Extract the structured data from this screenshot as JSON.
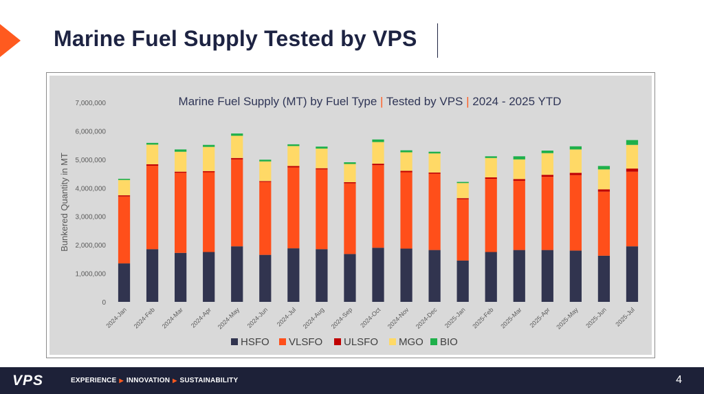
{
  "slide": {
    "title": "Marine Fuel Supply Tested by VPS",
    "page_number": "4"
  },
  "footer": {
    "logo": "VPS",
    "tagline": [
      "EXPERIENCE",
      "INNOVATION",
      "SUSTAINABILITY"
    ]
  },
  "colors": {
    "accent": "#ff5a1f",
    "navy": "#1d2138"
  },
  "chart_data": {
    "type": "bar",
    "stacked": true,
    "title_parts": [
      "Marine Fuel Supply (MT) by Fuel Type",
      "Tested by VPS",
      "2024 - 2025 YTD"
    ],
    "ylabel": "Bunkered Quantity in MT",
    "ylim": [
      0,
      7000000
    ],
    "yticks": [
      "0",
      "1,000,000",
      "2,000,000",
      "3,000,000",
      "4,000,000",
      "5,000,000",
      "6,000,000",
      "7,000,000"
    ],
    "categories": [
      "2024-Jan",
      "2024-Feb",
      "2024-Mar",
      "2024-Apr",
      "2024-May",
      "2024-Jun",
      "2024-Jul",
      "2024-Aug",
      "2024-Sep",
      "2024-Oct",
      "2024-Nov",
      "2024-Dec",
      "2025-Jan",
      "2025-Feb",
      "2025-Mar",
      "2025-Apr",
      "2025-May",
      "2025-Jun",
      "2025-Jul"
    ],
    "series": [
      {
        "name": "HSFO",
        "color": "#31344f",
        "values": [
          1350000,
          1850000,
          1720000,
          1750000,
          1950000,
          1650000,
          1880000,
          1850000,
          1680000,
          1900000,
          1870000,
          1820000,
          1450000,
          1750000,
          1820000,
          1820000,
          1800000,
          1620000,
          1950000
        ]
      },
      {
        "name": "VLSFO",
        "color": "#ff4f1a",
        "values": [
          2350000,
          2930000,
          2810000,
          2800000,
          3050000,
          2560000,
          2840000,
          2800000,
          2480000,
          2900000,
          2680000,
          2680000,
          2150000,
          2570000,
          2430000,
          2570000,
          2650000,
          2250000,
          2620000
        ]
      },
      {
        "name": "ULSFO",
        "color": "#c00000",
        "values": [
          40000,
          50000,
          40000,
          40000,
          50000,
          30000,
          50000,
          40000,
          40000,
          50000,
          50000,
          40000,
          40000,
          50000,
          60000,
          70000,
          80000,
          80000,
          110000
        ]
      },
      {
        "name": "MGO",
        "color": "#ffd966",
        "values": [
          540000,
          690000,
          700000,
          850000,
          780000,
          690000,
          700000,
          690000,
          640000,
          760000,
          650000,
          670000,
          530000,
          680000,
          690000,
          760000,
          820000,
          700000,
          830000
        ]
      },
      {
        "name": "BIO",
        "color": "#1fb04b",
        "values": [
          40000,
          60000,
          80000,
          70000,
          80000,
          60000,
          60000,
          70000,
          60000,
          90000,
          70000,
          60000,
          40000,
          60000,
          110000,
          90000,
          110000,
          120000,
          170000
        ]
      }
    ],
    "legend_position": "bottom",
    "grid": false
  }
}
